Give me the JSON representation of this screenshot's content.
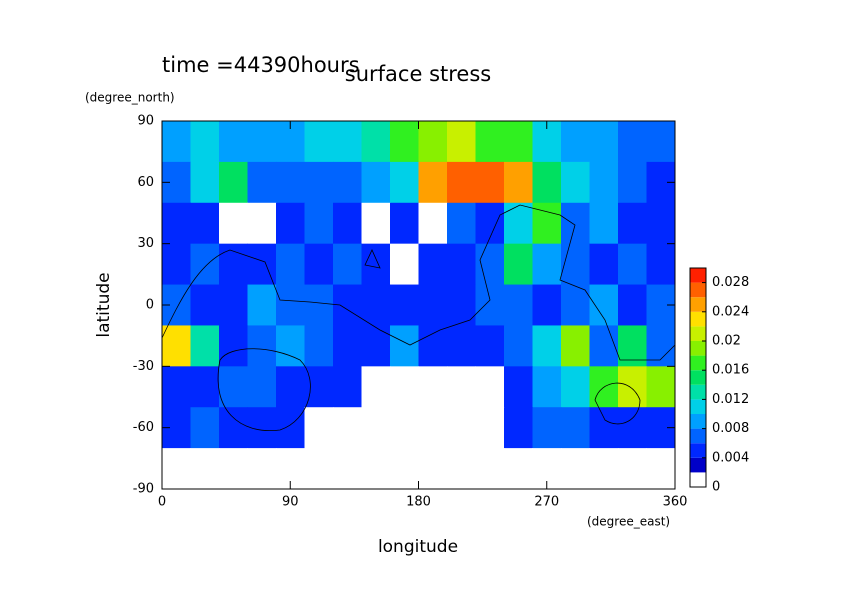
{
  "chart_data": {
    "type": "heatmap",
    "title": "surface stress",
    "annotation": "time =44390hours",
    "x_label": "longitude",
    "y_label": "latitude",
    "x_unit": "(degree_east)",
    "y_unit": "(degree_north)",
    "xlim": [
      0,
      360
    ],
    "ylim": [
      -90,
      90
    ],
    "xticks": [
      0,
      90,
      180,
      270,
      360
    ],
    "yticks": [
      -90,
      -60,
      -30,
      0,
      30,
      60,
      90
    ],
    "x": [
      10,
      30,
      50,
      70,
      90,
      110,
      130,
      150,
      170,
      190,
      210,
      230,
      250,
      270,
      290,
      310,
      330,
      350
    ],
    "y": [
      80,
      60,
      40,
      20,
      0,
      -20,
      -40,
      -60,
      -80
    ],
    "z": [
      [
        0.008,
        0.01,
        0.008,
        0.008,
        0.008,
        0.01,
        0.01,
        0.012,
        0.016,
        0.018,
        0.02,
        0.016,
        0.016,
        0.01,
        0.008,
        0.008,
        0.006,
        0.006
      ],
      [
        0.006,
        0.01,
        0.014,
        0.006,
        0.006,
        0.006,
        0.006,
        0.008,
        0.01,
        0.024,
        0.026,
        0.026,
        0.024,
        0.014,
        0.01,
        0.008,
        0.006,
        0.004
      ],
      [
        0.004,
        0.004,
        0,
        0,
        0.004,
        0.006,
        0.004,
        0,
        0.004,
        0,
        0.006,
        0.004,
        0.01,
        0.016,
        0.006,
        0.008,
        0.004,
        0.004
      ],
      [
        0.004,
        0.006,
        0.004,
        0.004,
        0.006,
        0.004,
        0.006,
        0.004,
        0,
        0.004,
        0.004,
        0.006,
        0.014,
        0.008,
        0.006,
        0.004,
        0.006,
        0.004
      ],
      [
        0.006,
        0.004,
        0.004,
        0.008,
        0.006,
        0.006,
        0.004,
        0.004,
        0.004,
        0.004,
        0.004,
        0.006,
        0.006,
        0.004,
        0.006,
        0.008,
        0.004,
        0.006
      ],
      [
        0.022,
        0.012,
        0.004,
        0.006,
        0.008,
        0.006,
        0.004,
        0.004,
        0.008,
        0.004,
        0.004,
        0.004,
        0.006,
        0.01,
        0.018,
        0.006,
        0.014,
        0.006
      ],
      [
        0.004,
        0.004,
        0.006,
        0.006,
        0.004,
        0.004,
        0.004,
        0,
        0,
        0,
        0,
        0,
        0.004,
        0.008,
        0.01,
        0.016,
        0.02,
        0.018
      ],
      [
        0.004,
        0.006,
        0.004,
        0.004,
        0.004,
        0,
        0,
        0,
        0,
        0,
        0,
        0,
        0.004,
        0.006,
        0.006,
        0.004,
        0.004,
        0.004
      ],
      [
        0,
        0,
        0,
        0,
        0,
        0,
        0,
        0,
        0,
        0,
        0,
        0,
        0,
        0,
        0,
        0,
        0,
        0
      ]
    ],
    "colorbar": {
      "lim": [
        0,
        0.03
      ],
      "ticks": [
        0,
        0.004,
        0.008,
        0.012,
        0.016,
        0.02,
        0.024,
        0.028
      ],
      "levels": [
        0,
        0.002,
        0.004,
        0.006,
        0.008,
        0.01,
        0.012,
        0.014,
        0.016,
        0.018,
        0.02,
        0.022,
        0.024,
        0.026,
        0.028,
        0.03
      ],
      "colors": [
        "#ffffff",
        "#0000c8",
        "#0028ff",
        "#0064ff",
        "#00a0ff",
        "#00d0e8",
        "#00e0a8",
        "#00e060",
        "#30f020",
        "#88f000",
        "#c8f000",
        "#ffe000",
        "#ffa000",
        "#ff6000",
        "#ff2000"
      ]
    }
  }
}
